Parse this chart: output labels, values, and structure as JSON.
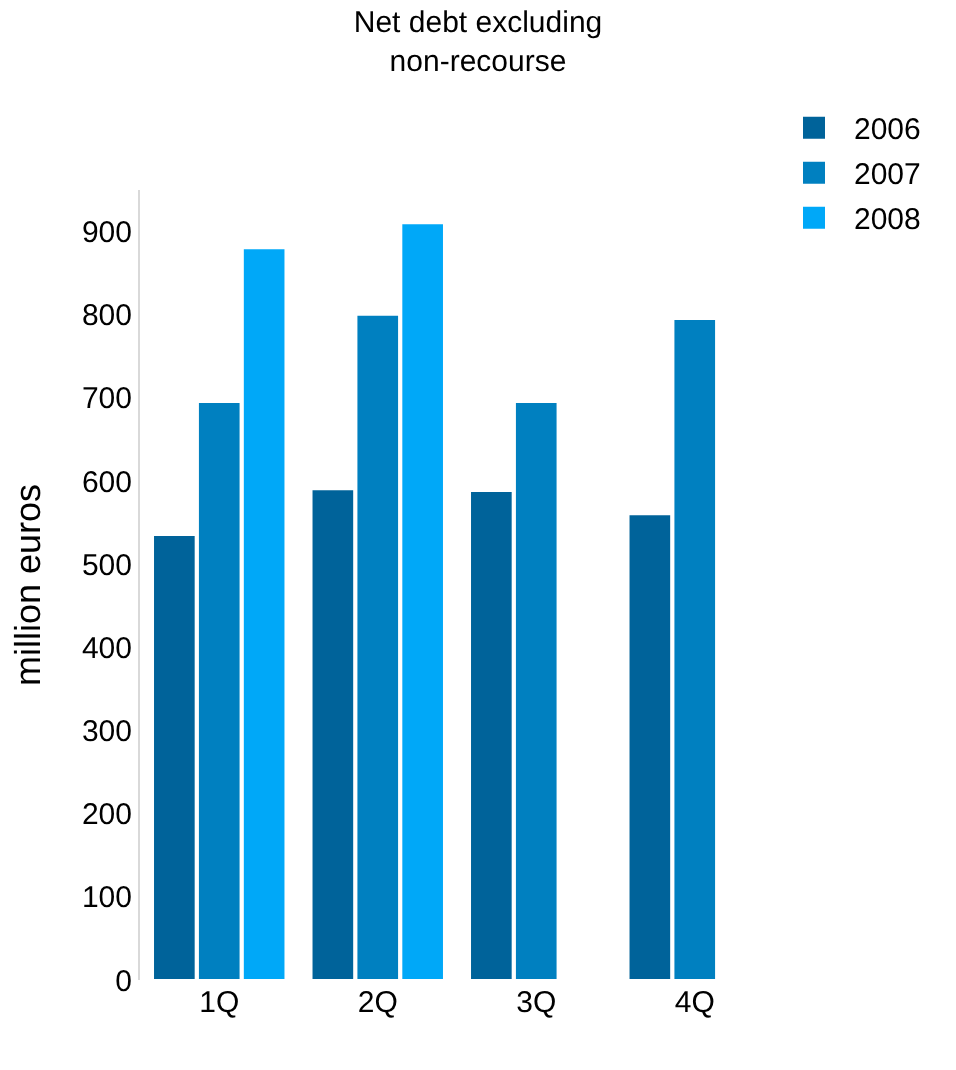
{
  "chart_data": {
    "type": "bar",
    "title": "Net debt excluding\nnon-recourse",
    "ylabel": "million euros",
    "categories": [
      "1Q",
      "2Q",
      "3Q",
      "4Q"
    ],
    "series": [
      {
        "name": "2006",
        "color": "#00639a",
        "values": [
          535,
          590,
          588,
          560
        ]
      },
      {
        "name": "2007",
        "color": "#0080c0",
        "values": [
          695,
          800,
          695,
          795
        ]
      },
      {
        "name": "2008",
        "color": "#00a8f8",
        "values": [
          880,
          910,
          null,
          null
        ]
      }
    ],
    "ylim": [
      0,
      950
    ],
    "yticks": [
      0,
      100,
      200,
      300,
      400,
      500,
      600,
      700,
      800,
      900
    ],
    "legend": "top right"
  }
}
